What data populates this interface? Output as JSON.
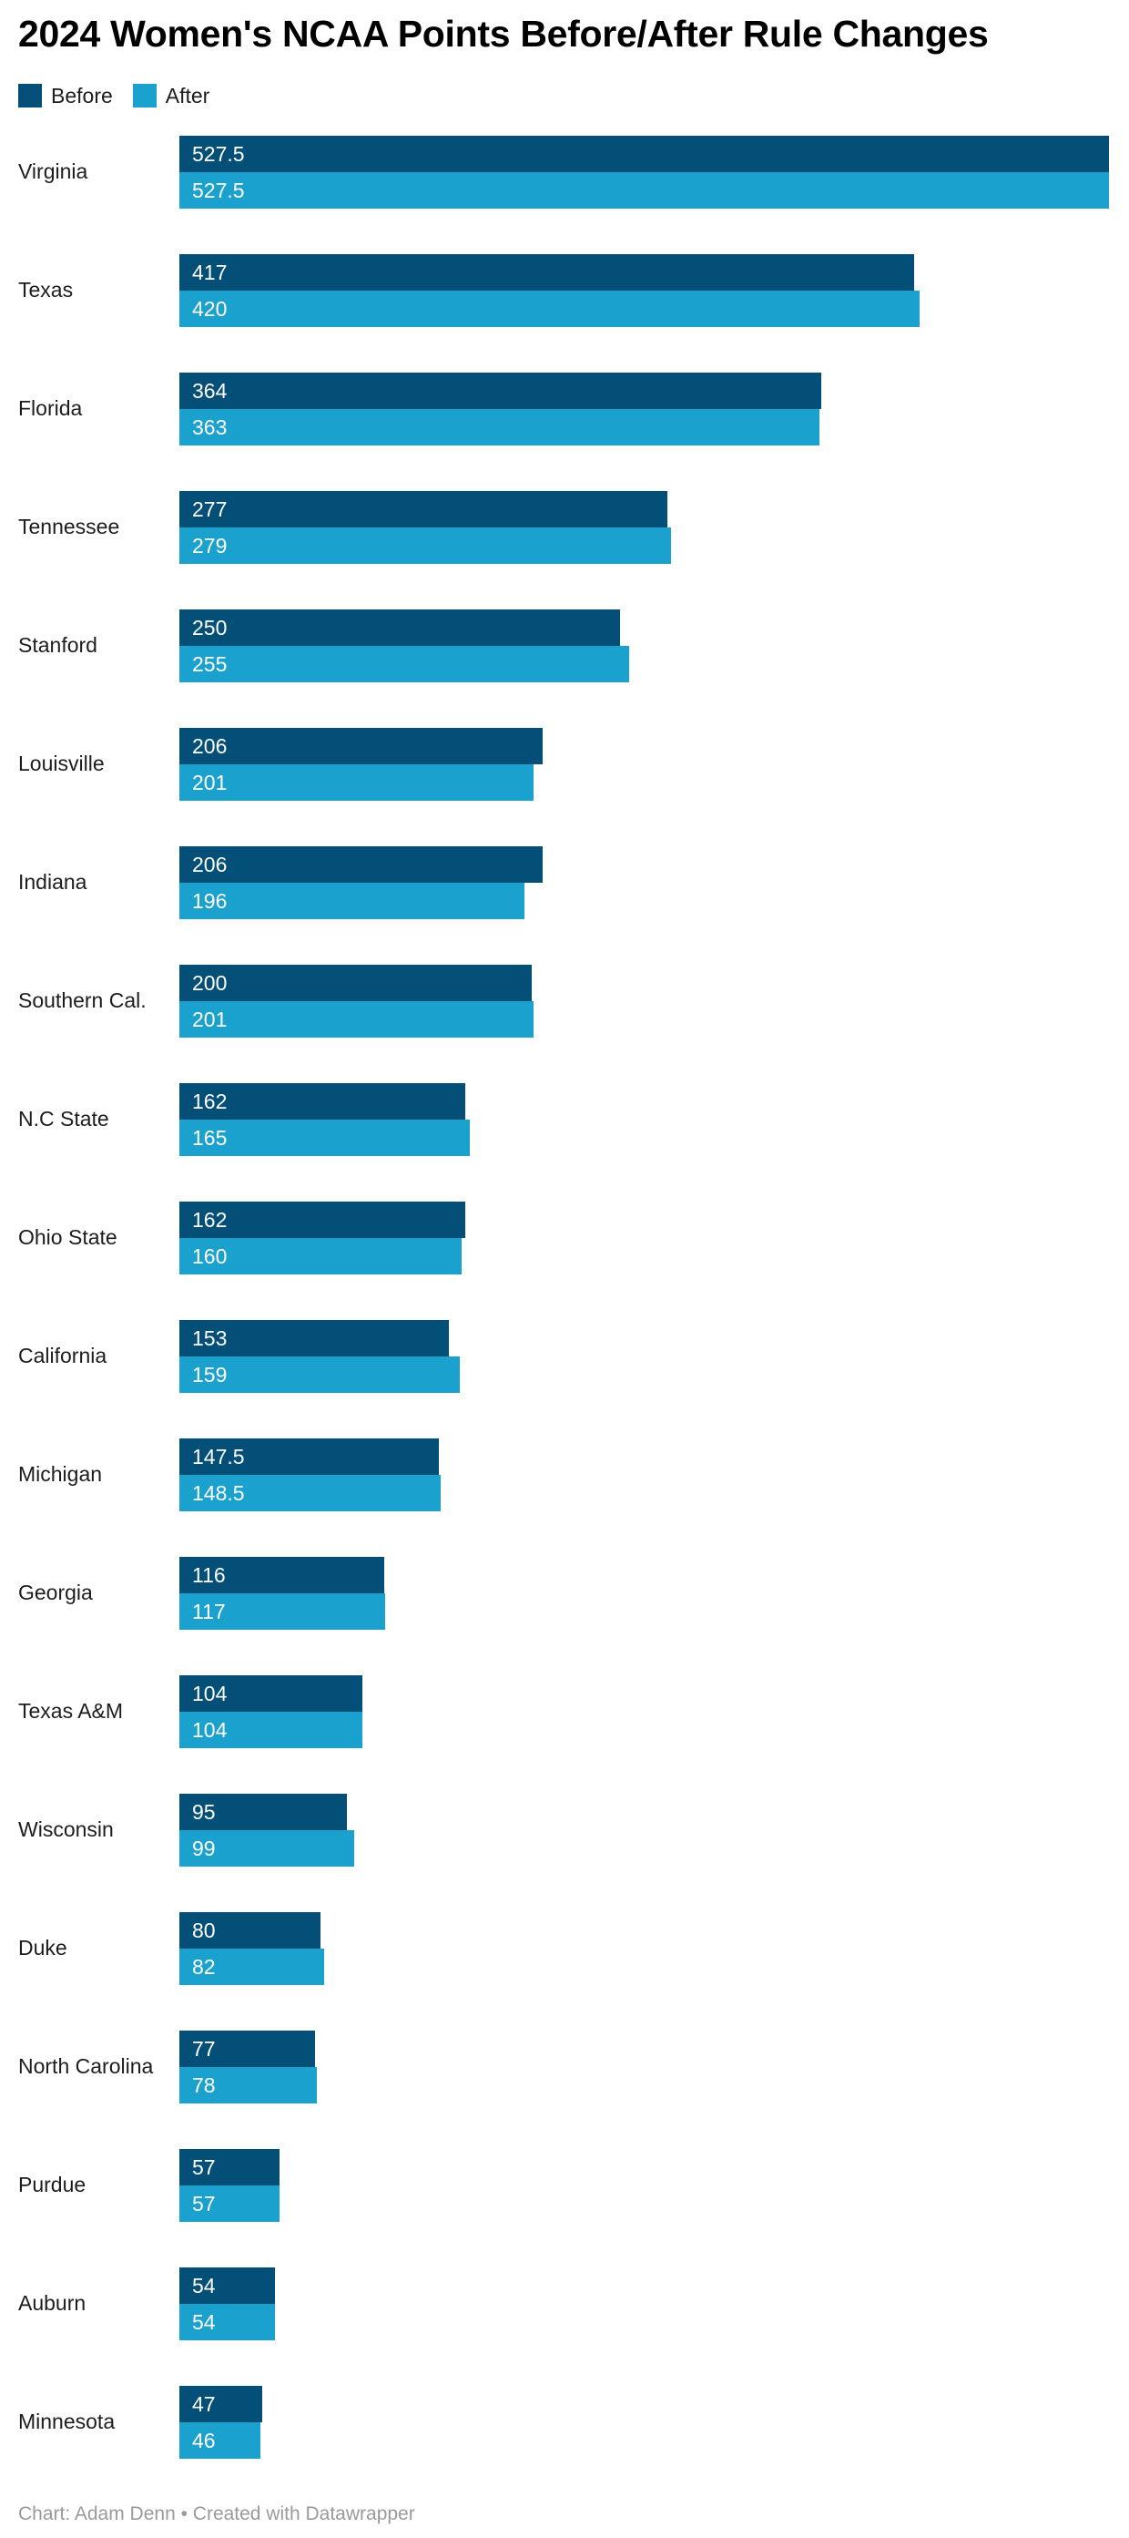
{
  "title": "2024 Women's NCAA Points Before/After Rule Changes",
  "legend": {
    "before_label": "Before",
    "after_label": "After"
  },
  "colors": {
    "before": "#034f78",
    "after": "#1ba1ce",
    "bar_value_text": "#ffffff",
    "title_text": "#000000",
    "label_text": "#1d1d1d",
    "footer_text": "#9a9a9a"
  },
  "footer": {
    "credit": "Chart: Adam Denn • Created with Datawrapper"
  },
  "chart_data": {
    "type": "bar",
    "orientation": "horizontal",
    "title": "2024 Women's NCAA Points Before/After Rule Changes",
    "xlabel": "",
    "ylabel": "",
    "xlim": [
      0,
      527.5
    ],
    "grid": false,
    "legend_position": "top-left",
    "value_labels": "inside-start",
    "categories": [
      "Virginia",
      "Texas",
      "Florida",
      "Tennessee",
      "Stanford",
      "Louisville",
      "Indiana",
      "Southern Cal.",
      "N.C State",
      "Ohio State",
      "California",
      "Michigan",
      "Georgia",
      "Texas A&M",
      "Wisconsin",
      "Duke",
      "North Carolina",
      "Purdue",
      "Auburn",
      "Minnesota"
    ],
    "series": [
      {
        "name": "Before",
        "color": "#034f78",
        "values": [
          527.5,
          417,
          364,
          277,
          250,
          206,
          206,
          200,
          162,
          162,
          153,
          147.5,
          116,
          104,
          95,
          80,
          77,
          57,
          54,
          47
        ]
      },
      {
        "name": "After",
        "color": "#1ba1ce",
        "values": [
          527.5,
          420,
          363,
          279,
          255,
          201,
          196,
          201,
          165,
          160,
          159,
          148.5,
          117,
          104,
          99,
          82,
          78,
          57,
          54,
          46
        ]
      }
    ]
  }
}
